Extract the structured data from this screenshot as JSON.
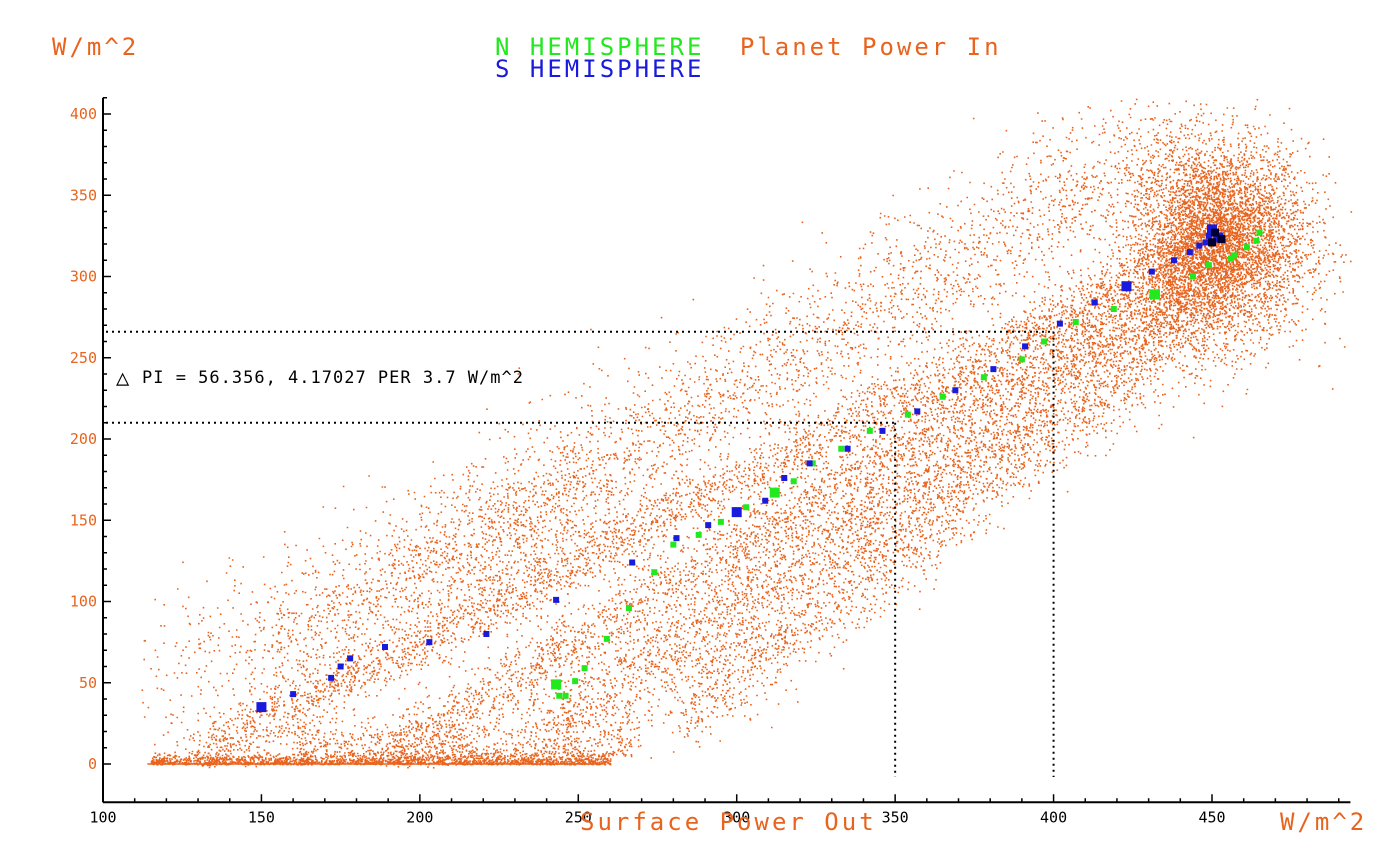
{
  "chart_data": {
    "type": "scatter",
    "title_parts": [
      {
        "text": "N HEMISPHERE",
        "color": "#22e81e"
      },
      {
        "text": "Planet Power In",
        "color": "#e8641e"
      }
    ],
    "title_line2": {
      "text": "S HEMISPHERE",
      "color": "#1a1adc"
    },
    "xlabel": "Surface Power Out",
    "ylabel_unit": "W/m^2",
    "xlabel_unit": "W/m^2",
    "xlim": [
      100,
      500
    ],
    "ylim": [
      -10,
      410
    ],
    "xticks": [
      100,
      150,
      200,
      250,
      300,
      350,
      400,
      450
    ],
    "yticks": [
      0,
      50,
      100,
      150,
      200,
      250,
      300,
      350,
      400
    ],
    "grid": false,
    "annotation": {
      "symbol": "△",
      "text": "PI = 56.356, 4.17027 PER 3.7 W/m^2",
      "guides": [
        {
          "x": 350,
          "y": 210
        },
        {
          "x": 400,
          "y": 266
        }
      ]
    },
    "series": [
      {
        "name": "N HEMISPHERE",
        "color": "#22e81e",
        "points": [
          [
            243,
            49,
            "l"
          ],
          [
            244,
            42
          ],
          [
            246,
            42
          ],
          [
            249,
            51
          ],
          [
            252,
            59
          ],
          [
            259,
            77
          ],
          [
            266,
            96
          ],
          [
            274,
            118
          ],
          [
            280,
            135
          ],
          [
            288,
            141
          ],
          [
            295,
            149
          ],
          [
            303,
            158
          ],
          [
            312,
            167,
            "l"
          ],
          [
            318,
            174
          ],
          [
            324,
            185
          ],
          [
            333,
            194
          ],
          [
            342,
            205
          ],
          [
            354,
            215
          ],
          [
            365,
            226
          ],
          [
            378,
            238
          ],
          [
            390,
            249
          ],
          [
            397,
            260
          ],
          [
            407,
            272
          ],
          [
            419,
            280
          ],
          [
            432,
            289,
            "l"
          ],
          [
            444,
            300
          ],
          [
            449,
            307
          ],
          [
            452,
            325
          ],
          [
            457,
            313
          ],
          [
            461,
            318
          ],
          [
            464,
            322
          ],
          [
            465,
            327
          ],
          [
            456,
            311
          ]
        ]
      },
      {
        "name": "S HEMISPHERE",
        "color": "#1a1adc",
        "points": [
          [
            150,
            35,
            "l"
          ],
          [
            160,
            43
          ],
          [
            172,
            53
          ],
          [
            175,
            60
          ],
          [
            178,
            65
          ],
          [
            189,
            72
          ],
          [
            203,
            75
          ],
          [
            221,
            80
          ],
          [
            243,
            101
          ],
          [
            267,
            124
          ],
          [
            281,
            139
          ],
          [
            291,
            147
          ],
          [
            300,
            155,
            "l"
          ],
          [
            309,
            162
          ],
          [
            315,
            176
          ],
          [
            323,
            185
          ],
          [
            335,
            194
          ],
          [
            346,
            205
          ],
          [
            357,
            217
          ],
          [
            369,
            230
          ],
          [
            381,
            243
          ],
          [
            391,
            257
          ],
          [
            402,
            271
          ],
          [
            413,
            284
          ],
          [
            423,
            294,
            "l"
          ],
          [
            431,
            303
          ],
          [
            438,
            310
          ],
          [
            443,
            315
          ],
          [
            446,
            319
          ],
          [
            448,
            321
          ],
          [
            450,
            329,
            "l"
          ],
          [
            452,
            324,
            "l"
          ],
          [
            449,
            325
          ]
        ]
      }
    ],
    "background_cloud": {
      "name": "scatter cloud",
      "color": "#e8641e"
    }
  }
}
